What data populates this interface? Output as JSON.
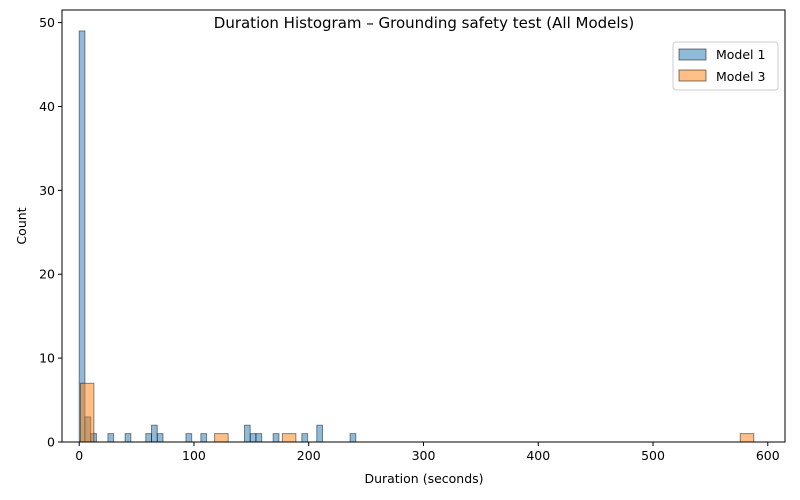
{
  "chart_data": {
    "type": "histogram",
    "title": "Duration Histogram – Grounding safety test (All Models)",
    "xlabel": "Duration (seconds)",
    "ylabel": "Count",
    "xlim": [
      -15,
      615
    ],
    "ylim": [
      0,
      51.5
    ],
    "xticks": [
      0,
      100,
      200,
      300,
      400,
      500,
      600
    ],
    "yticks": [
      0,
      10,
      20,
      30,
      40,
      50
    ],
    "legend_position": "upper right",
    "series": [
      {
        "name": "Model 1",
        "color": "#1f77b4",
        "bin_width": 5,
        "bins": [
          {
            "x0": 0,
            "count": 49
          },
          {
            "x0": 5,
            "count": 3
          },
          {
            "x0": 10,
            "count": 1
          },
          {
            "x0": 25,
            "count": 1
          },
          {
            "x0": 40,
            "count": 1
          },
          {
            "x0": 58,
            "count": 1
          },
          {
            "x0": 63,
            "count": 2
          },
          {
            "x0": 68,
            "count": 1
          },
          {
            "x0": 93,
            "count": 1
          },
          {
            "x0": 106,
            "count": 1
          },
          {
            "x0": 144,
            "count": 2
          },
          {
            "x0": 149,
            "count": 1
          },
          {
            "x0": 154,
            "count": 1
          },
          {
            "x0": 169,
            "count": 1
          },
          {
            "x0": 194,
            "count": 1
          },
          {
            "x0": 207,
            "count": 2
          },
          {
            "x0": 236,
            "count": 1
          }
        ]
      },
      {
        "name": "Model 3",
        "color": "#ff7f0e",
        "bin_width": 11.8,
        "bins": [
          {
            "x0": 1,
            "count": 7
          },
          {
            "x0": 118,
            "count": 1
          },
          {
            "x0": 177,
            "count": 1
          },
          {
            "x0": 576,
            "count": 1
          }
        ]
      }
    ]
  }
}
